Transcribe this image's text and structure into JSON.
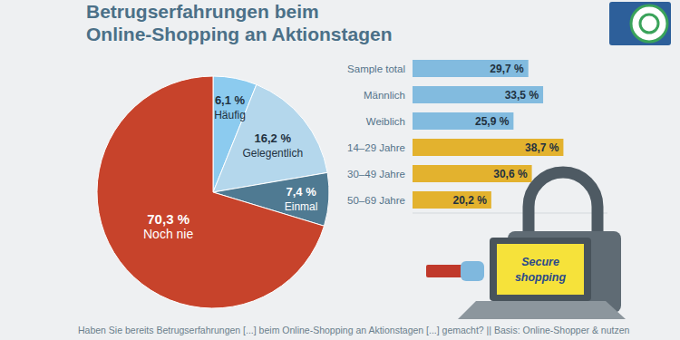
{
  "chart_data": [
    {
      "type": "pie",
      "title": "Betrugserfahrungen beim Online-Shopping an Aktionstagen",
      "categories": [
        "Häufig",
        "Gelegentlich",
        "Einmal",
        "Noch nie"
      ],
      "values": [
        6.1,
        16.2,
        7.4,
        70.3
      ],
      "value_labels": [
        "6,1 %",
        "16,2 %",
        "7,4 %",
        "70,3 %"
      ],
      "colors": [
        "#8ccbef",
        "#b4d7ec",
        "#4f7a92",
        "#c7432b"
      ],
      "data_labels": true,
      "annotations": [
        "Haben Sie bereits Betrugserfahrungen [...] beim Online-Shopping an Aktionstagen [...] gemacht? || Basis: Online-Shopper & nutzen"
      ]
    },
    {
      "type": "bar",
      "orientation": "horizontal",
      "categories": [
        "Sample total",
        "Männlich",
        "Weiblich",
        "14–29 Jahre",
        "30–49 Jahre",
        "50–69 Jahre"
      ],
      "values": [
        29.7,
        33.5,
        25.9,
        38.7,
        30.6,
        20.2
      ],
      "value_labels": [
        "29,7 %",
        "33,5 %",
        "25,9 %",
        "38,7 %",
        "30,6 %",
        "20,2 %"
      ],
      "colors": [
        "#82bbdf",
        "#82bbdf",
        "#82bbdf",
        "#e3b22e",
        "#e3b22e",
        "#e3b22e"
      ],
      "xlim": [
        0,
        50
      ],
      "tick_labels": false,
      "data_labels": true,
      "annotations": [
        "Secure shopping"
      ]
    }
  ]
}
